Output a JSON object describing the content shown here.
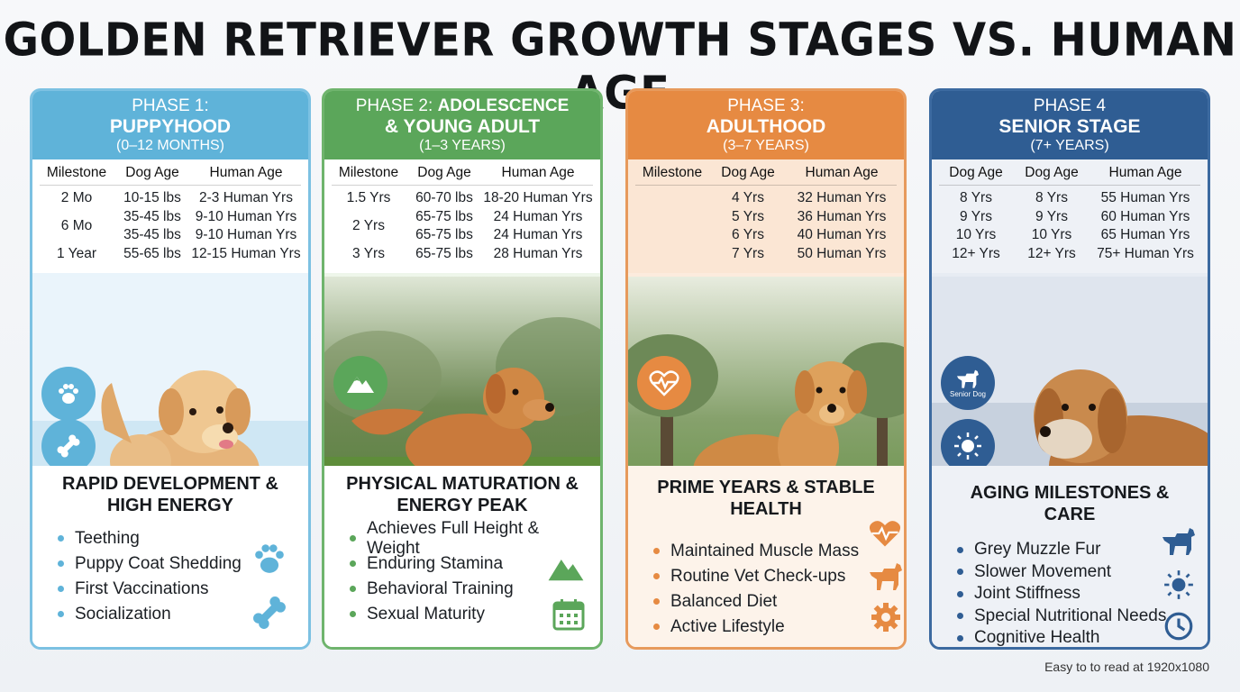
{
  "title": "GOLDEN RETRIEVER GROWTH STAGES VS. HUMAN AGE",
  "footer": "Easy to to read at 1920x1080",
  "colors": {
    "phase1": "#5fb3d9",
    "phase2": "#5ba65a",
    "phase3": "#e68a42",
    "phase4": "#2f5d93"
  },
  "phases": [
    {
      "label": "PHASE 1:",
      "name": "PUPPYHOOD",
      "range": "(0–12 MONTHS)",
      "headers": [
        "Milestone",
        "Dog Age",
        "Human Age"
      ],
      "rows": [
        [
          "2 Mo",
          "10-15 lbs",
          "2-3 Human Yrs"
        ],
        [
          "6 Mo",
          "35-45 lbs",
          "9-10 Human Yrs"
        ],
        [
          "",
          "35-45 lbs",
          "9-10 Human Yrs"
        ],
        [
          "1 Year",
          "55-65 lbs",
          "12-15 Human Yrs"
        ]
      ],
      "subtitle": "RAPID DEVELOPMENT & HIGH ENERGY",
      "bullets": [
        "Teething",
        "Puppy Coat Shedding",
        "First Vaccinations",
        "Socialization"
      ],
      "icons": [
        "paw-icon",
        "bone-icon"
      ]
    },
    {
      "label": "PHASE 2:",
      "label_bold": "ADOLESCENCE",
      "name": "& YOUNG ADULT",
      "range": "(1–3 YEARS)",
      "headers": [
        "Milestone",
        "Dog Age",
        "Human Age"
      ],
      "rows": [
        [
          "1.5 Yrs",
          "60-70 lbs",
          "18-20 Human Yrs"
        ],
        [
          "2 Yrs",
          "65-75 lbs",
          "24 Human Yrs"
        ],
        [
          "",
          "65-75 lbs",
          "24 Human Yrs"
        ],
        [
          "3 Yrs",
          "65-75 lbs",
          "28 Human Yrs"
        ]
      ],
      "subtitle": "PHYSICAL MATURATION & ENERGY PEAK",
      "bullets": [
        "Achieves Full Height & Weight",
        "Enduring Stamina",
        "Behavioral Training",
        "Sexual Maturity"
      ],
      "icons": [
        "mountain-icon",
        "calendar-icon"
      ]
    },
    {
      "label": "PHASE 3:",
      "name": "ADULTHOOD",
      "range": "(3–7 YEARS)",
      "headers": [
        "Milestone",
        "Dog Age",
        "Human Age"
      ],
      "rows": [
        [
          "",
          "4 Yrs",
          "32 Human Yrs"
        ],
        [
          "",
          "5 Yrs",
          "36 Human Yrs"
        ],
        [
          "",
          "6 Yrs",
          "40 Human Yrs"
        ],
        [
          "",
          "7 Yrs",
          "50 Human Yrs"
        ]
      ],
      "subtitle": "PRIME YEARS & STABLE HEALTH",
      "bullets": [
        "Maintained Muscle Mass",
        "Routine Vet Check-ups",
        "Balanced Diet",
        "Active Lifestyle"
      ],
      "icons": [
        "heartbeat-icon",
        "dog-icon",
        "gear-icon"
      ]
    },
    {
      "label": "PHASE 4",
      "name": "SENIOR STAGE",
      "range": "(7+ YEARS)",
      "headers": [
        "Dog Age",
        "Dog Age",
        "Human Age"
      ],
      "rows": [
        [
          "8 Yrs",
          "8 Yrs",
          "55 Human Yrs"
        ],
        [
          "9 Yrs",
          "9 Yrs",
          "60 Human Yrs"
        ],
        [
          "10 Yrs",
          "10 Yrs",
          "65 Human Yrs"
        ],
        [
          "12+ Yrs",
          "12+ Yrs",
          "75+ Human Yrs"
        ]
      ],
      "badge": "Senior Dog",
      "subtitle": "AGING MILESTONES & CARE",
      "bullets": [
        "Grey Muzzle Fur",
        "Slower Movement",
        "Joint Stiffness",
        "Special Nutritional Needs",
        "Cognitive Health"
      ],
      "icons": [
        "sun-icon",
        "clock-icon"
      ]
    }
  ]
}
